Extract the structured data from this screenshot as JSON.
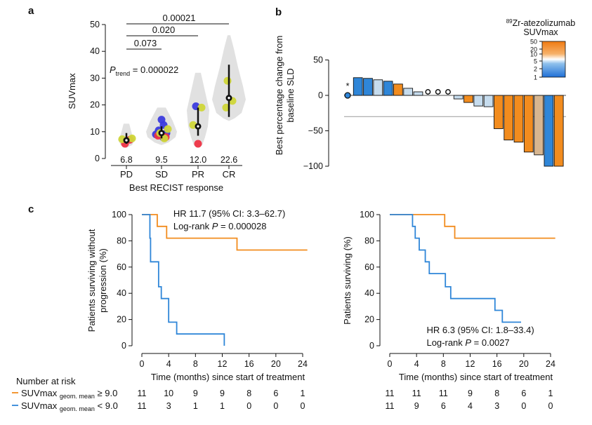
{
  "panels": {
    "a": "a",
    "b": "b",
    "c": "c"
  },
  "colors": {
    "orange": "#f28c1e",
    "blue": "#2f86d8",
    "lightblue": "#c6dcee",
    "tan": "#d7b690",
    "pd": "#ee3344",
    "sd": "#3b3bdd",
    "green": "#cfd638",
    "violin": "#e1e1e1"
  },
  "chart_data": [
    {
      "type": "violin",
      "ylabel": "SUVmax",
      "xlabel": "Best RECIST response",
      "ylim": [
        0,
        50
      ],
      "yticks": [
        "0",
        "10",
        "20",
        "30",
        "40",
        "50"
      ],
      "categories": [
        "PD",
        "SD",
        "PR",
        "CR"
      ],
      "medians": [
        6.8,
        9.5,
        12.0,
        22.6
      ],
      "median_labels": [
        "6.8",
        "9.5",
        "12.0",
        "22.6"
      ],
      "whiskers": [
        [
          5.5,
          9.5
        ],
        [
          7.5,
          12
        ],
        [
          8.5,
          19
        ],
        [
          15.5,
          35
        ]
      ],
      "points": [
        {
          "cat": 0,
          "y": 5.5,
          "color": "pd"
        },
        {
          "cat": 0,
          "y": 7,
          "color": "pd"
        },
        {
          "cat": 0,
          "y": 7.2,
          "color": "green"
        },
        {
          "cat": 0,
          "y": 7.5,
          "color": "green"
        },
        {
          "cat": 1,
          "y": 14.5,
          "color": "sd"
        },
        {
          "cat": 1,
          "y": 12.5,
          "color": "sd"
        },
        {
          "cat": 1,
          "y": 10.5,
          "color": "sd"
        },
        {
          "cat": 1,
          "y": 9.5,
          "color": "sd"
        },
        {
          "cat": 1,
          "y": 9,
          "color": "sd"
        },
        {
          "cat": 1,
          "y": 8,
          "color": "sd"
        },
        {
          "cat": 1,
          "y": 8.5,
          "color": "pd"
        },
        {
          "cat": 1,
          "y": 8,
          "color": "pd"
        },
        {
          "cat": 1,
          "y": 9.5,
          "color": "green"
        },
        {
          "cat": 1,
          "y": 11,
          "color": "green"
        },
        {
          "cat": 1,
          "y": 7.5,
          "color": "green"
        },
        {
          "cat": 2,
          "y": 19.5,
          "color": "sd"
        },
        {
          "cat": 2,
          "y": 19,
          "color": "green"
        },
        {
          "cat": 2,
          "y": 12.5,
          "color": "green"
        },
        {
          "cat": 2,
          "y": 5.5,
          "color": "pd"
        },
        {
          "cat": 3,
          "y": 29,
          "color": "green"
        },
        {
          "cat": 3,
          "y": 21.5,
          "color": "green"
        },
        {
          "cat": 3,
          "y": 19,
          "color": "green"
        }
      ],
      "comparisons": [
        "0.00021",
        "0.020",
        "0.073"
      ],
      "ptrend": {
        "p": "P",
        "sub": "trend",
        "value": " = 0.000022"
      }
    },
    {
      "type": "bar",
      "ylabel": [
        "Best percentage change from",
        "baseline SLD"
      ],
      "ylim": [
        -100,
        50
      ],
      "yticks": [
        "50",
        "0",
        "−50",
        "−100"
      ],
      "threshold": -30,
      "asterisk": "*",
      "values": [
        0,
        25,
        24,
        22,
        20,
        16,
        10,
        5,
        0,
        0,
        0,
        -5,
        -10,
        -15,
        -16,
        -47,
        -63,
        -66,
        -80,
        -84,
        -100,
        -100
      ],
      "bar_colors": [
        "blue",
        "blue",
        "blue",
        "lightblue",
        "blue",
        "orange",
        "lightblue",
        "lightblue",
        "none",
        "none",
        "none",
        "lightblue",
        "orange",
        "lightblue",
        "lightblue",
        "orange",
        "orange",
        "orange",
        "orange",
        "tan",
        "blue",
        "orange"
      ],
      "open_circles": [
        8,
        9,
        10
      ],
      "legend": {
        "title_sup": "89",
        "title_main": "Zr-atezolizumab",
        "title_line2": "SUVmax",
        "ticks": [
          "50",
          "20",
          "10",
          "5",
          "2",
          "1"
        ]
      }
    },
    {
      "type": "line",
      "ylabel": [
        "Patients surviving without",
        "progression (%)"
      ],
      "xlabel": "Time (months) since start of treatment",
      "xlim": [
        0,
        26
      ],
      "ylim": [
        0,
        100
      ],
      "xticks": [
        "0",
        "4",
        "8",
        "12",
        "16",
        "20",
        "24"
      ],
      "yticks": [
        "0",
        "20",
        "40",
        "60",
        "80",
        "100"
      ],
      "annotation": {
        "line1": "HR 11.7 (95% CI: 3.3–62.7)",
        "line2_pre": "Log-rank ",
        "line2_p": "P",
        "line2_post": " = 0.000028"
      },
      "series": [
        {
          "color": "orange",
          "steps": [
            [
              0,
              100
            ],
            [
              2.3,
              100
            ],
            [
              2.3,
              91
            ],
            [
              3.7,
              91
            ],
            [
              3.7,
              82
            ],
            [
              14.2,
              82
            ],
            [
              14.2,
              73
            ],
            [
              24.7,
              73
            ]
          ]
        },
        {
          "color": "blue",
          "steps": [
            [
              0,
              100
            ],
            [
              1.2,
              100
            ],
            [
              1.2,
              82
            ],
            [
              1.3,
              82
            ],
            [
              1.3,
              64
            ],
            [
              2.5,
              64
            ],
            [
              2.5,
              45
            ],
            [
              2.9,
              45
            ],
            [
              2.9,
              36
            ],
            [
              4,
              36
            ],
            [
              4,
              18
            ],
            [
              5.2,
              18
            ],
            [
              5.2,
              9
            ],
            [
              12.3,
              9
            ],
            [
              12.3,
              0
            ]
          ]
        }
      ],
      "at_risk_high": [
        "11",
        "10",
        "9",
        "9",
        "8",
        "6",
        "1"
      ],
      "at_risk_low": [
        "11",
        "3",
        "1",
        "1",
        "0",
        "0",
        "0"
      ]
    },
    {
      "type": "line",
      "ylabel": [
        "Patients surviving (%)"
      ],
      "xlabel": "Time (months) since start of treatment",
      "xlim": [
        0,
        26
      ],
      "ylim": [
        0,
        100
      ],
      "xticks": [
        "0",
        "4",
        "8",
        "12",
        "16",
        "20",
        "24"
      ],
      "yticks": [
        "0",
        "20",
        "40",
        "60",
        "80",
        "100"
      ],
      "annotation": {
        "line1": "HR 6.3 (95% CI: 1.8–33.4)",
        "line2_pre": "Log-rank ",
        "line2_p": "P",
        "line2_post": " = 0.0027"
      },
      "series": [
        {
          "color": "orange",
          "steps": [
            [
              0,
              100
            ],
            [
              8.2,
              100
            ],
            [
              8.2,
              91
            ],
            [
              9.7,
              91
            ],
            [
              9.7,
              82
            ],
            [
              24.7,
              82
            ]
          ]
        },
        {
          "color": "blue",
          "steps": [
            [
              0,
              100
            ],
            [
              3.4,
              100
            ],
            [
              3.4,
              91
            ],
            [
              3.8,
              91
            ],
            [
              3.8,
              82
            ],
            [
              4.4,
              82
            ],
            [
              4.4,
              73
            ],
            [
              5.3,
              73
            ],
            [
              5.3,
              64
            ],
            [
              5.9,
              64
            ],
            [
              5.9,
              55
            ],
            [
              8.3,
              55
            ],
            [
              8.3,
              45
            ],
            [
              9.1,
              45
            ],
            [
              9.1,
              36
            ],
            [
              15.7,
              36
            ],
            [
              15.7,
              27
            ],
            [
              16.8,
              27
            ],
            [
              16.8,
              18
            ],
            [
              19.6,
              18
            ]
          ]
        }
      ],
      "at_risk_high": [
        "11",
        "11",
        "11",
        "9",
        "8",
        "6",
        "1"
      ],
      "at_risk_low": [
        "11",
        "9",
        "6",
        "4",
        "3",
        "0",
        "0"
      ]
    }
  ],
  "at_risk": {
    "title": "Number at risk",
    "high_label": {
      "main": "SUVmax",
      "sub": "geom. mean",
      "op": " ≥ 9.0"
    },
    "low_label": {
      "main": "SUVmax",
      "sub": "geom. mean",
      "op": " < 9.0"
    }
  }
}
